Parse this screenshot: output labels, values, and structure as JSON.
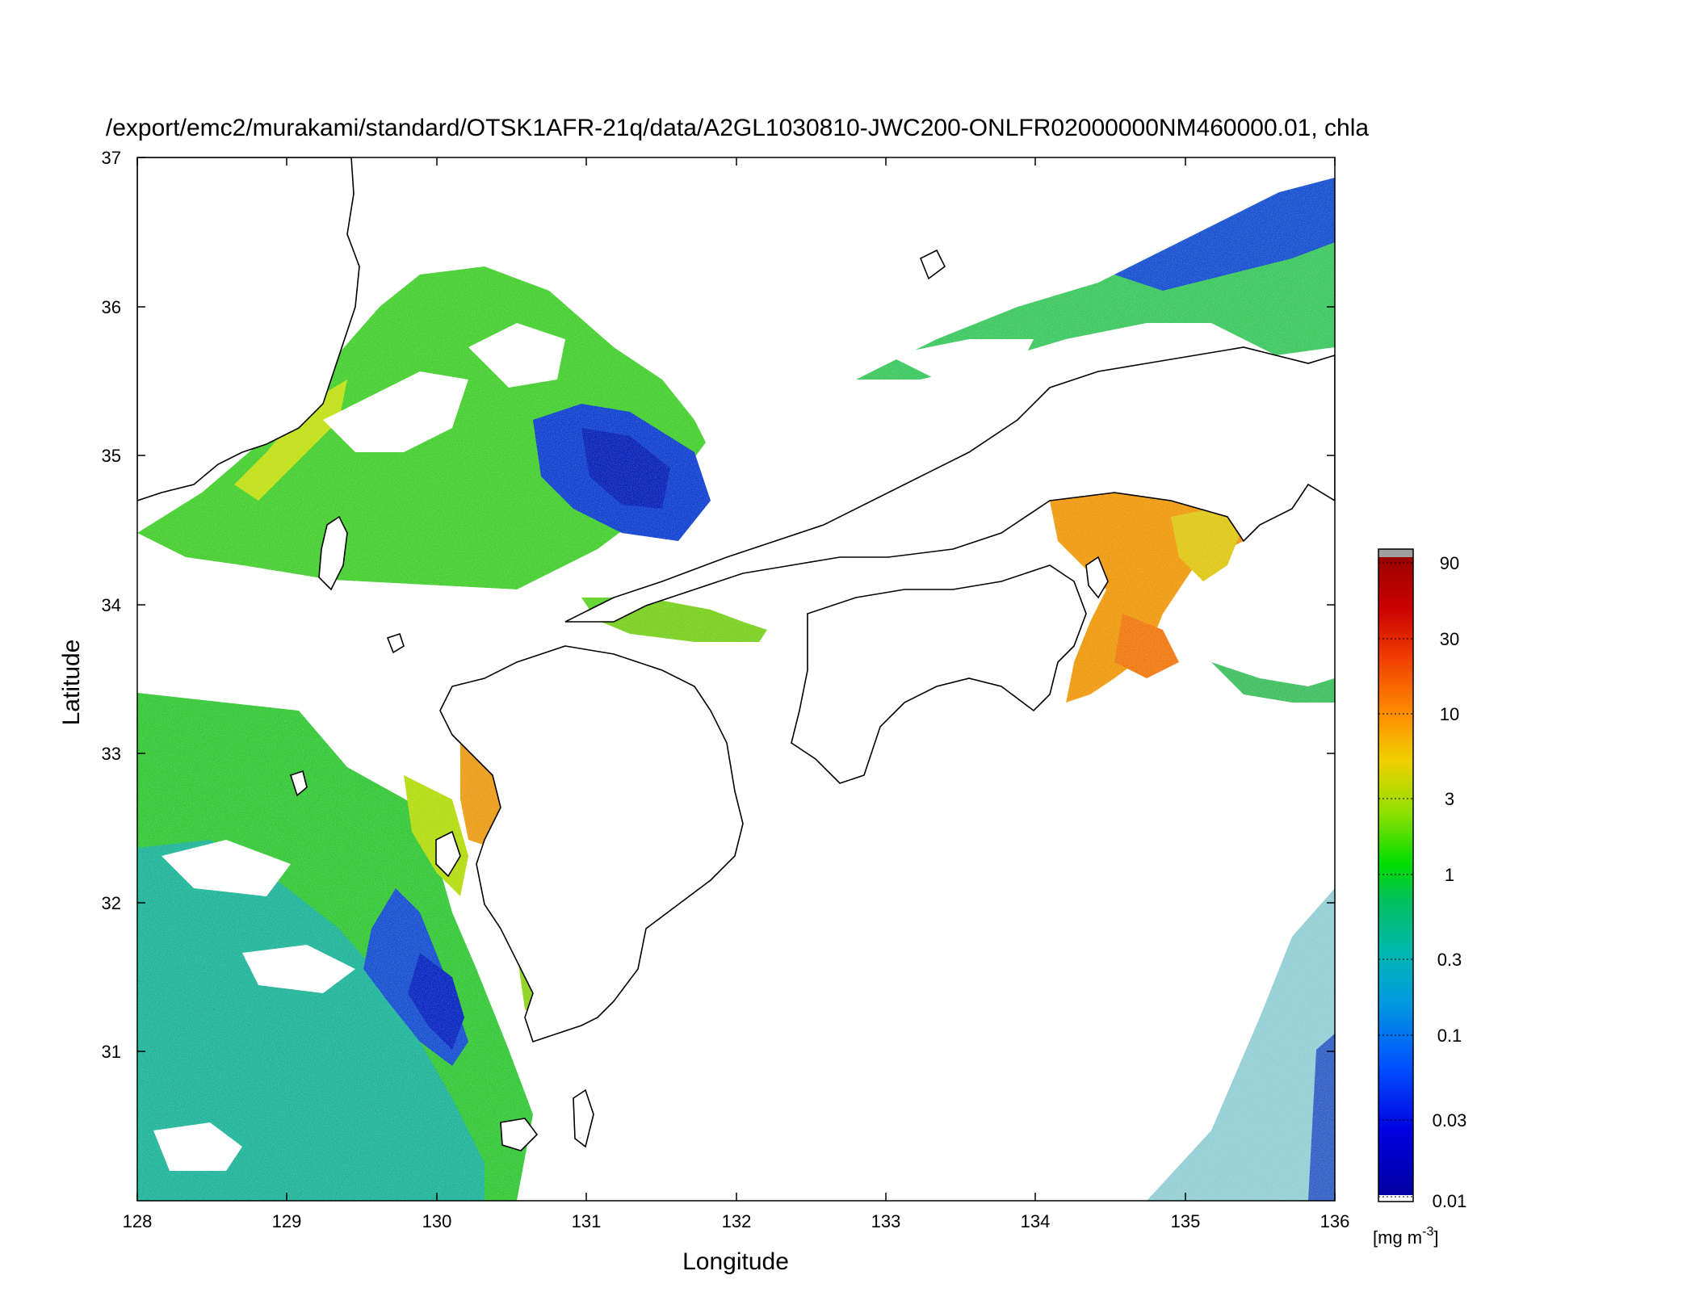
{
  "title": "/export/emc2/murakami/standard/OTSK1AFR-21q/data/A2GL1030810-JWC200-ONLFR02000000NM460000.01, chla",
  "map": {
    "xlabel": "Longitude",
    "ylabel": "Latitude",
    "x_ticks": [
      "128",
      "129",
      "130",
      "131",
      "132",
      "133",
      "134",
      "135",
      "136"
    ],
    "y_ticks": [
      "37",
      "36",
      "35",
      "34",
      "33",
      "32",
      "31"
    ],
    "xlim": [
      128,
      136
    ],
    "ylim": [
      30,
      37
    ],
    "variable": "chla"
  },
  "colorbar": {
    "ticks": [
      "90",
      "30",
      "10",
      "3",
      "1",
      "0.3",
      "0.1",
      "0.03",
      "0.01"
    ],
    "unit_prefix": "[mg m",
    "unit_exp": "-3",
    "unit_suffix": "]",
    "scale": "log",
    "colors": [
      "#0000a0",
      "#0000ff",
      "#0090e0",
      "#00b8b0",
      "#00c050",
      "#00dd00",
      "#a0e000",
      "#f0d000",
      "#ff8800",
      "#ee3300",
      "#cc0000",
      "#990000"
    ],
    "cap_color": "#a0a0a0"
  },
  "palette": {
    "cloud": "#ffffff",
    "land": "#ffffff",
    "coastline": "#000000"
  }
}
